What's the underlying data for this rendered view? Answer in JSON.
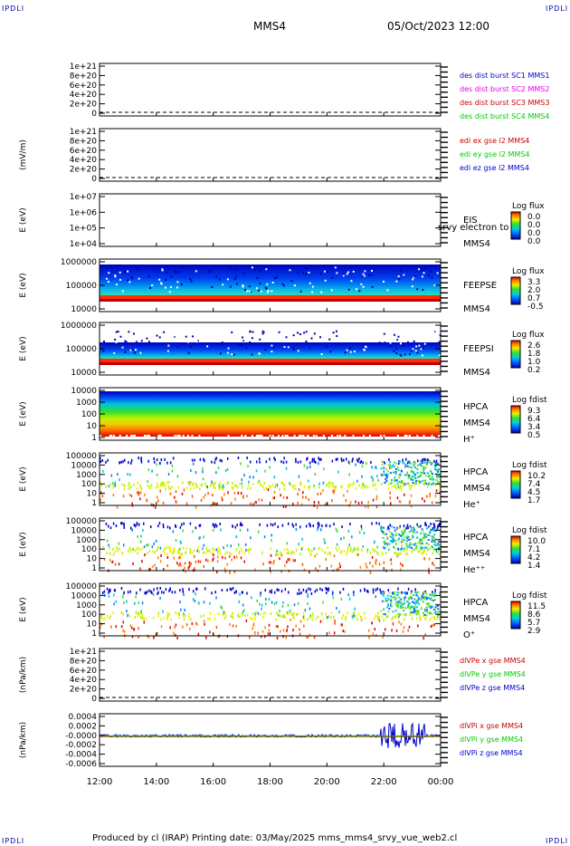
{
  "corners": {
    "tl": "IPDLI",
    "tr": "IPDLI",
    "bl": "IPDLI",
    "br": "IPDLI"
  },
  "header": {
    "spacecraft": "MMS4",
    "datetime": "05/Oct/2023 12:00"
  },
  "footer": {
    "text": "Produced by cl (IRAP)   Printing date: 03/May/2025   mms_mms4_srvy_vue_web2.cl"
  },
  "colors": {
    "red": "#cc0000",
    "magenta": "#e600e6",
    "green": "#00cc00",
    "blue": "#0000cc",
    "black": "#000000"
  },
  "chart_data": {
    "type": "stacked_panels",
    "x_ticks": [
      "12:00",
      "14:00",
      "16:00",
      "18:00",
      "20:00",
      "22:00",
      "00:00"
    ],
    "xlim_hours": [
      12,
      24
    ],
    "panels": [
      {
        "type": "line",
        "ylabel": "",
        "yticks": [
          "1e+21",
          "8e+20",
          "6e+20",
          "4e+20",
          "2e+20",
          "0"
        ],
        "legend": [
          {
            "text": "des dist burst SC1 MMS1",
            "color": "#0000cc"
          },
          {
            "text": "des dist burst SC2 MMS2",
            "color": "#e600e6"
          },
          {
            "text": "des dist burst SC3 MMS3",
            "color": "#cc0000"
          },
          {
            "text": "des dist burst SC4 MMS4",
            "color": "#00cc00"
          }
        ]
      },
      {
        "type": "line",
        "ylabel": "(mV/m)",
        "yticks": [
          "1e+21",
          "8e+20",
          "6e+20",
          "4e+20",
          "2e+20",
          "0"
        ],
        "legend": [
          {
            "text": "edi ex gse l2 MMS4",
            "color": "#cc0000"
          },
          {
            "text": "edi ey gse l2 MMS4",
            "color": "#00cc00"
          },
          {
            "text": "edi ez gse l2 MMS4",
            "color": "#0000cc"
          }
        ]
      },
      {
        "type": "heatmap",
        "ylabel": "E (eV)",
        "yticks": [
          "1e+07",
          "1e+06",
          "1e+05",
          "1e+04"
        ],
        "instrument": [
          "EIS",
          "MMS4"
        ],
        "overlay": "srvy electron to",
        "cbar_title": "Log flux",
        "cbar": [
          "0.0",
          "0.0",
          "0.0",
          "0.0"
        ]
      },
      {
        "type": "heatmap",
        "ylabel": "E (eV)",
        "yticks": [
          "1000000",
          "100000",
          "10000"
        ],
        "instrument": [
          "FEEPSE",
          "MMS4"
        ],
        "cbar_title": "Log flux",
        "cbar": [
          "3.3",
          "2.0",
          "0.7",
          "-0.5"
        ]
      },
      {
        "type": "heatmap",
        "ylabel": "E (eV)",
        "yticks": [
          "1000000",
          "100000",
          "10000"
        ],
        "instrument": [
          "FEEPSI",
          "MMS4"
        ],
        "cbar_title": "Log flux",
        "cbar": [
          "2.6",
          "1.8",
          "1.0",
          "0.2"
        ]
      },
      {
        "type": "heatmap",
        "ylabel": "E (eV)",
        "yticks": [
          "10000",
          "1000",
          "100",
          "10",
          "1"
        ],
        "instrument": [
          "HPCA",
          "MMS4",
          "H⁺"
        ],
        "cbar_title": "Log fdist",
        "cbar": [
          "9.3",
          "6.4",
          "3.4",
          "0.5"
        ]
      },
      {
        "type": "heatmap",
        "ylabel": "E (eV)",
        "yticks": [
          "100000",
          "10000",
          "1000",
          "100",
          "10",
          "1"
        ],
        "instrument": [
          "HPCA",
          "MMS4",
          "He⁺"
        ],
        "cbar_title": "Log fdist",
        "cbar": [
          "10.2",
          "7.4",
          "4.5",
          "1.7"
        ]
      },
      {
        "type": "heatmap",
        "ylabel": "E (eV)",
        "yticks": [
          "100000",
          "10000",
          "1000",
          "100",
          "10",
          "1"
        ],
        "instrument": [
          "HPCA",
          "MMS4",
          "He⁺⁺"
        ],
        "cbar_title": "Log fdist",
        "cbar": [
          "10.0",
          "7.1",
          "4.2",
          "1.4"
        ]
      },
      {
        "type": "heatmap",
        "ylabel": "E (eV)",
        "yticks": [
          "100000",
          "10000",
          "1000",
          "100",
          "10",
          "1"
        ],
        "instrument": [
          "HPCA",
          "MMS4",
          "O⁺"
        ],
        "cbar_title": "Log fdist",
        "cbar": [
          "11.5",
          "8.6",
          "5.7",
          "2.9"
        ]
      },
      {
        "type": "line",
        "ylabel": "(nPa/km)",
        "yticks": [
          "1e+21",
          "8e+20",
          "6e+20",
          "4e+20",
          "2e+20",
          "0"
        ],
        "legend": [
          {
            "text": "dlVPe x gse MMS4",
            "color": "#cc0000"
          },
          {
            "text": "dlVPe y gse MMS4",
            "color": "#00cc00"
          },
          {
            "text": "dlVPe z gse MMS4",
            "color": "#0000cc"
          }
        ]
      },
      {
        "type": "line",
        "ylabel": "(nPa/km)",
        "yticks": [
          "0.0004",
          "0.0002",
          "-0.0000",
          "-0.0002",
          "-0.0004",
          "-0.0006"
        ],
        "legend": [
          {
            "text": "dlVPi x gse MMS4",
            "color": "#cc0000"
          },
          {
            "text": "dlVPi y gse MMS4",
            "color": "#00cc00"
          },
          {
            "text": "dlVPi z gse MMS4",
            "color": "#0000cc"
          }
        ]
      }
    ]
  }
}
